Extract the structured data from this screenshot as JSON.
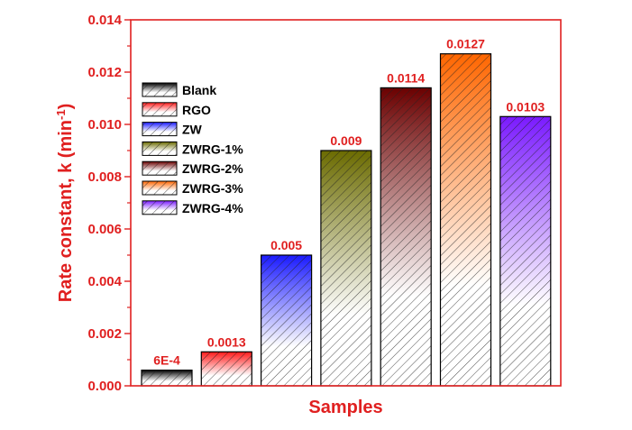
{
  "chart_data": {
    "type": "bar",
    "title": "",
    "xlabel": "Samples",
    "ylabel_main": "Rate constant, k (min",
    "ylabel_sup": "-1",
    "ylabel_close": ")",
    "ylim": [
      0,
      0.014
    ],
    "yticks": [
      {
        "value": 0.0,
        "label": "0.000"
      },
      {
        "value": 0.002,
        "label": "0.002"
      },
      {
        "value": 0.004,
        "label": "0.004"
      },
      {
        "value": 0.006,
        "label": "0.006"
      },
      {
        "value": 0.008,
        "label": "0.008"
      },
      {
        "value": 0.01,
        "label": "0.010"
      },
      {
        "value": 0.012,
        "label": "0.012"
      },
      {
        "value": 0.014,
        "label": "0.014"
      }
    ],
    "grid": false,
    "legend_position": "top-left",
    "categories": [
      "Blank",
      "RGO",
      "ZW",
      "ZWRG-1%",
      "ZWRG-2%",
      "ZWRG-3%",
      "ZWRG-4%"
    ],
    "values": [
      0.0006,
      0.0013,
      0.005,
      0.009,
      0.0114,
      0.0127,
      0.0103
    ],
    "data_labels": [
      "6E-4",
      "0.0013",
      "0.005",
      "0.009",
      "0.0114",
      "0.0127",
      "0.0103"
    ],
    "colors": [
      "#000000",
      "#ff1a1a",
      "#1a1aff",
      "#6b6b00",
      "#6b0000",
      "#ff6600",
      "#7a1aff"
    ],
    "axis_color": "#e02020",
    "label_color": "#e02020"
  }
}
